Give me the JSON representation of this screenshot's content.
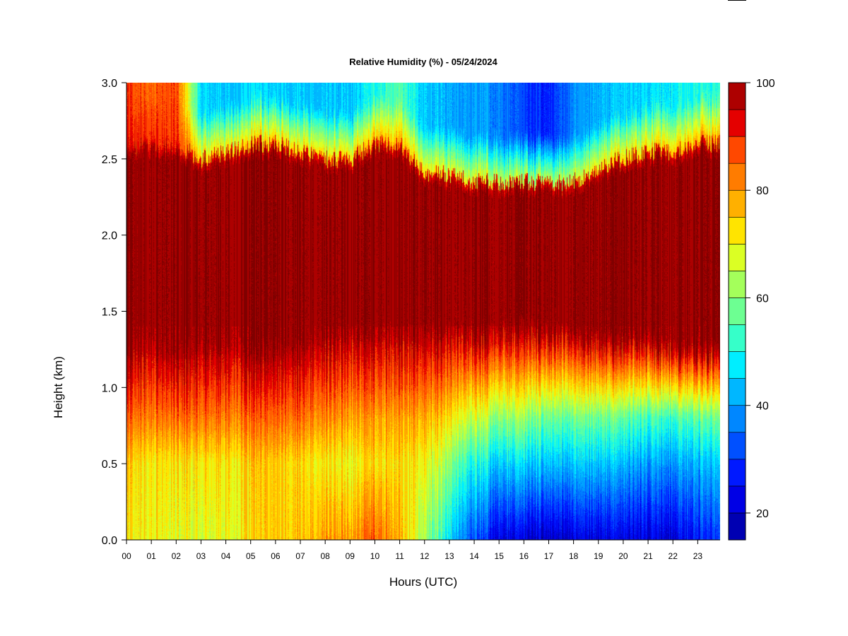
{
  "chart_data": {
    "type": "heatmap",
    "title": "Relative Humidity (%) - 05/24/2024",
    "xlabel": "Hours (UTC)",
    "ylabel": "Height (km)",
    "x_ticks": [
      "00",
      "01",
      "02",
      "03",
      "04",
      "05",
      "06",
      "07",
      "08",
      "09",
      "10",
      "11",
      "12",
      "13",
      "14",
      "15",
      "16",
      "17",
      "18",
      "19",
      "20",
      "21",
      "22",
      "23"
    ],
    "xlim": [
      0,
      23.9
    ],
    "y_ticks": [
      "0.0",
      "0.5",
      "1.0",
      "1.5",
      "2.0",
      "2.5",
      "3.0"
    ],
    "ylim": [
      0.0,
      3.0
    ],
    "colorbar": {
      "levels": [
        15,
        20,
        25,
        30,
        35,
        40,
        45,
        50,
        55,
        60,
        65,
        70,
        75,
        80,
        85,
        90,
        95,
        100
      ],
      "colors": [
        "#00007F",
        "#0000B2",
        "#0000E5",
        "#0019FF",
        "#0050FF",
        "#0087FF",
        "#00B7FF",
        "#00EEFF",
        "#36FFC9",
        "#6DFF92",
        "#A4FF5B",
        "#DBFF24",
        "#FFE400",
        "#FFB000",
        "#FF7C00",
        "#FF4800",
        "#E40000",
        "#AD0000",
        "#7F0000"
      ],
      "tick_labels": [
        "20",
        "40",
        "60",
        "80",
        "100"
      ],
      "tick_values": [
        20,
        40,
        60,
        80,
        100
      ]
    },
    "hour_profiles": [
      {
        "hour": 0,
        "rh_bottom": 70,
        "rh_0_5": 74,
        "rh_0_8": 84,
        "moist_low": 1.25,
        "moist_top": 2.55,
        "rh_above": 92,
        "rh_top": 88
      },
      {
        "hour": 1,
        "rh_bottom": 72,
        "rh_0_5": 73,
        "rh_0_8": 84,
        "moist_low": 1.25,
        "moist_top": 2.55,
        "rh_above": 92,
        "rh_top": 86
      },
      {
        "hour": 2,
        "rh_bottom": 68,
        "rh_0_5": 72,
        "rh_0_8": 84,
        "moist_low": 1.25,
        "moist_top": 2.55,
        "rh_above": 90,
        "rh_top": 88
      },
      {
        "hour": 3,
        "rh_bottom": 68,
        "rh_0_5": 72,
        "rh_0_8": 84,
        "moist_low": 1.25,
        "moist_top": 2.45,
        "rh_above": 80,
        "rh_top": 46
      },
      {
        "hour": 4,
        "rh_bottom": 70,
        "rh_0_5": 73,
        "rh_0_8": 84,
        "moist_low": 1.25,
        "moist_top": 2.5,
        "rh_above": 80,
        "rh_top": 44
      },
      {
        "hour": 5,
        "rh_bottom": 72,
        "rh_0_5": 74,
        "rh_0_8": 84,
        "moist_low": 1.25,
        "moist_top": 2.55,
        "rh_above": 82,
        "rh_top": 46
      },
      {
        "hour": 6,
        "rh_bottom": 74,
        "rh_0_5": 74,
        "rh_0_8": 84,
        "moist_low": 1.25,
        "moist_top": 2.55,
        "rh_above": 82,
        "rh_top": 44
      },
      {
        "hour": 7,
        "rh_bottom": 75,
        "rh_0_5": 73,
        "rh_0_8": 84,
        "moist_low": 1.25,
        "moist_top": 2.5,
        "rh_above": 80,
        "rh_top": 44
      },
      {
        "hour": 8,
        "rh_bottom": 80,
        "rh_0_5": 72,
        "rh_0_8": 82,
        "moist_low": 1.3,
        "moist_top": 2.45,
        "rh_above": 80,
        "rh_top": 44
      },
      {
        "hour": 9,
        "rh_bottom": 80,
        "rh_0_5": 70,
        "rh_0_8": 80,
        "moist_low": 1.35,
        "moist_top": 2.45,
        "rh_above": 80,
        "rh_top": 44
      },
      {
        "hour": 10,
        "rh_bottom": 86,
        "rh_0_5": 74,
        "rh_0_8": 80,
        "moist_low": 1.35,
        "moist_top": 2.55,
        "rh_above": 84,
        "rh_top": 50
      },
      {
        "hour": 11,
        "rh_bottom": 78,
        "rh_0_5": 74,
        "rh_0_8": 80,
        "moist_low": 1.35,
        "moist_top": 2.55,
        "rh_above": 84,
        "rh_top": 56
      },
      {
        "hour": 12,
        "rh_bottom": 62,
        "rh_0_5": 70,
        "rh_0_8": 78,
        "moist_low": 1.35,
        "moist_top": 2.35,
        "rh_above": 78,
        "rh_top": 44
      },
      {
        "hour": 13,
        "rh_bottom": 48,
        "rh_0_5": 62,
        "rh_0_8": 74,
        "moist_low": 1.35,
        "moist_top": 2.35,
        "rh_above": 76,
        "rh_top": 42
      },
      {
        "hour": 14,
        "rh_bottom": 32,
        "rh_0_5": 50,
        "rh_0_8": 66,
        "moist_low": 1.35,
        "moist_top": 2.3,
        "rh_above": 76,
        "rh_top": 40
      },
      {
        "hour": 15,
        "rh_bottom": 24,
        "rh_0_5": 46,
        "rh_0_8": 62,
        "moist_low": 1.35,
        "moist_top": 2.3,
        "rh_above": 74,
        "rh_top": 38
      },
      {
        "hour": 16,
        "rh_bottom": 20,
        "rh_0_5": 44,
        "rh_0_8": 60,
        "moist_low": 1.4,
        "moist_top": 2.3,
        "rh_above": 72,
        "rh_top": 30
      },
      {
        "hour": 17,
        "rh_bottom": 20,
        "rh_0_5": 44,
        "rh_0_8": 58,
        "moist_low": 1.35,
        "moist_top": 2.3,
        "rh_above": 72,
        "rh_top": 28
      },
      {
        "hour": 18,
        "rh_bottom": 22,
        "rh_0_5": 44,
        "rh_0_8": 58,
        "moist_low": 1.35,
        "moist_top": 2.3,
        "rh_above": 74,
        "rh_top": 38
      },
      {
        "hour": 19,
        "rh_bottom": 22,
        "rh_0_5": 44,
        "rh_0_8": 58,
        "moist_low": 1.3,
        "moist_top": 2.4,
        "rh_above": 78,
        "rh_top": 42
      },
      {
        "hour": 20,
        "rh_bottom": 22,
        "rh_0_5": 42,
        "rh_0_8": 56,
        "moist_low": 1.3,
        "moist_top": 2.45,
        "rh_above": 80,
        "rh_top": 44
      },
      {
        "hour": 21,
        "rh_bottom": 22,
        "rh_0_5": 40,
        "rh_0_8": 54,
        "moist_low": 1.3,
        "moist_top": 2.5,
        "rh_above": 80,
        "rh_top": 46
      },
      {
        "hour": 22,
        "rh_bottom": 22,
        "rh_0_5": 40,
        "rh_0_8": 54,
        "moist_low": 1.25,
        "moist_top": 2.5,
        "rh_above": 82,
        "rh_top": 48
      },
      {
        "hour": 23,
        "rh_bottom": 26,
        "rh_0_5": 42,
        "rh_0_8": 56,
        "moist_low": 1.25,
        "moist_top": 2.55,
        "rh_above": 84,
        "rh_top": 50
      },
      {
        "hour": 23.9,
        "rh_bottom": 28,
        "rh_0_5": 42,
        "rh_0_8": 56,
        "moist_low": 1.25,
        "moist_top": 2.55,
        "rh_above": 84,
        "rh_top": 50
      }
    ]
  }
}
